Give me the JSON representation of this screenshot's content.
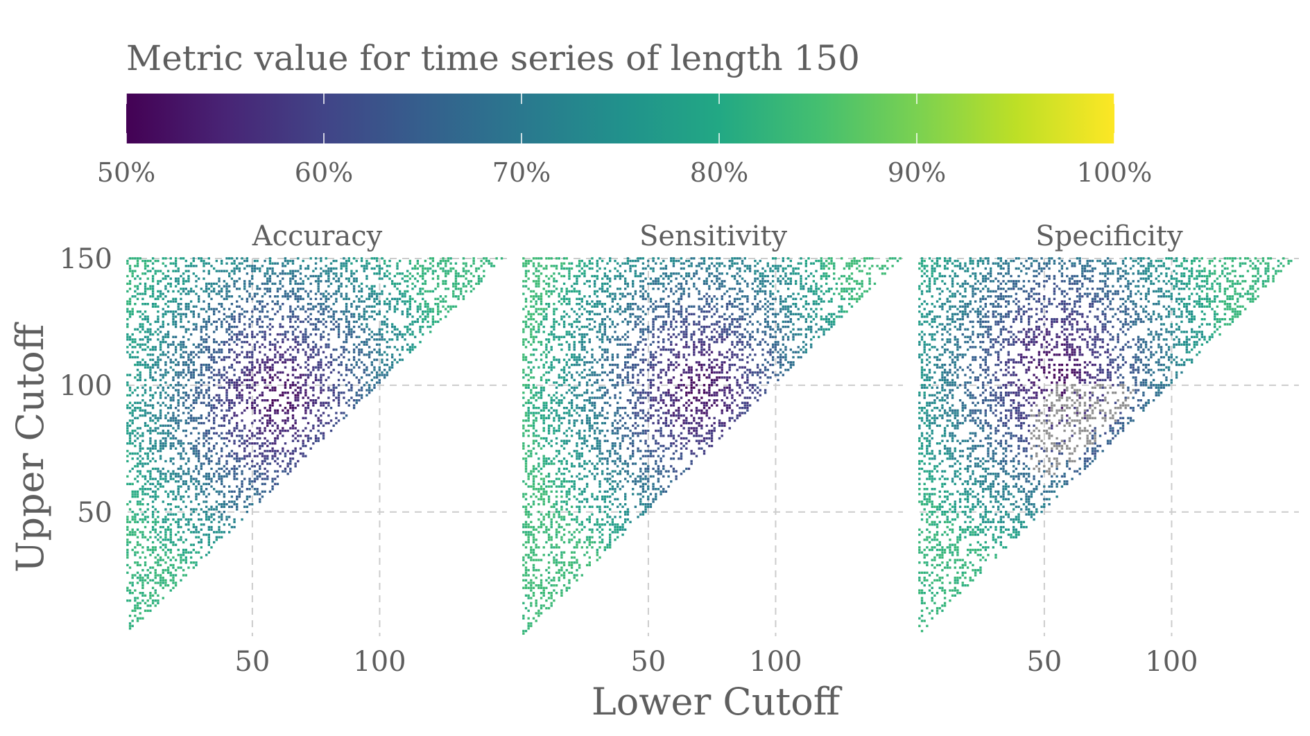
{
  "chart_data": {
    "type": "heatmap",
    "legend": {
      "title": "Metric value for time series of length 150",
      "placement": "top",
      "colorscale": "viridis",
      "range": [
        50,
        100
      ],
      "ticks": [
        50,
        60,
        70,
        80,
        90,
        100
      ],
      "tick_labels": [
        "50%",
        "60%",
        "70%",
        "80%",
        "90%",
        "100%"
      ]
    },
    "xlabel": "Lower Cutoff",
    "ylabel": "Upper Cutoff",
    "xlim": [
      1,
      150
    ],
    "ylim": [
      1,
      150
    ],
    "x_ticks": [
      50,
      100
    ],
    "x_tick_labels": [
      "50",
      "100"
    ],
    "y_ticks": [
      50,
      100,
      150
    ],
    "y_tick_labels": [
      "50",
      "100",
      "150"
    ],
    "grid": true,
    "domain": "upper > lower (triangular region), sparse sampled cells",
    "missing_color": "#8c8c8c",
    "panels": [
      {
        "title": "Accuracy",
        "min_value": 50,
        "max_value": 83,
        "low_region": {
          "lower": 60,
          "upper": 95
        },
        "gray_band": false
      },
      {
        "title": "Sensitivity",
        "min_value": 50,
        "max_value": 84,
        "low_region": {
          "lower": 70,
          "upper": 98
        },
        "gray_band": false
      },
      {
        "title": "Specificity",
        "min_value": 50,
        "max_value": 83,
        "low_region": {
          "lower": 55,
          "upper": 105
        },
        "gray_band": true,
        "gray_band_region": {
          "lower_range": [
            45,
            85
          ],
          "upper_range": [
            65,
            100
          ]
        }
      }
    ]
  }
}
